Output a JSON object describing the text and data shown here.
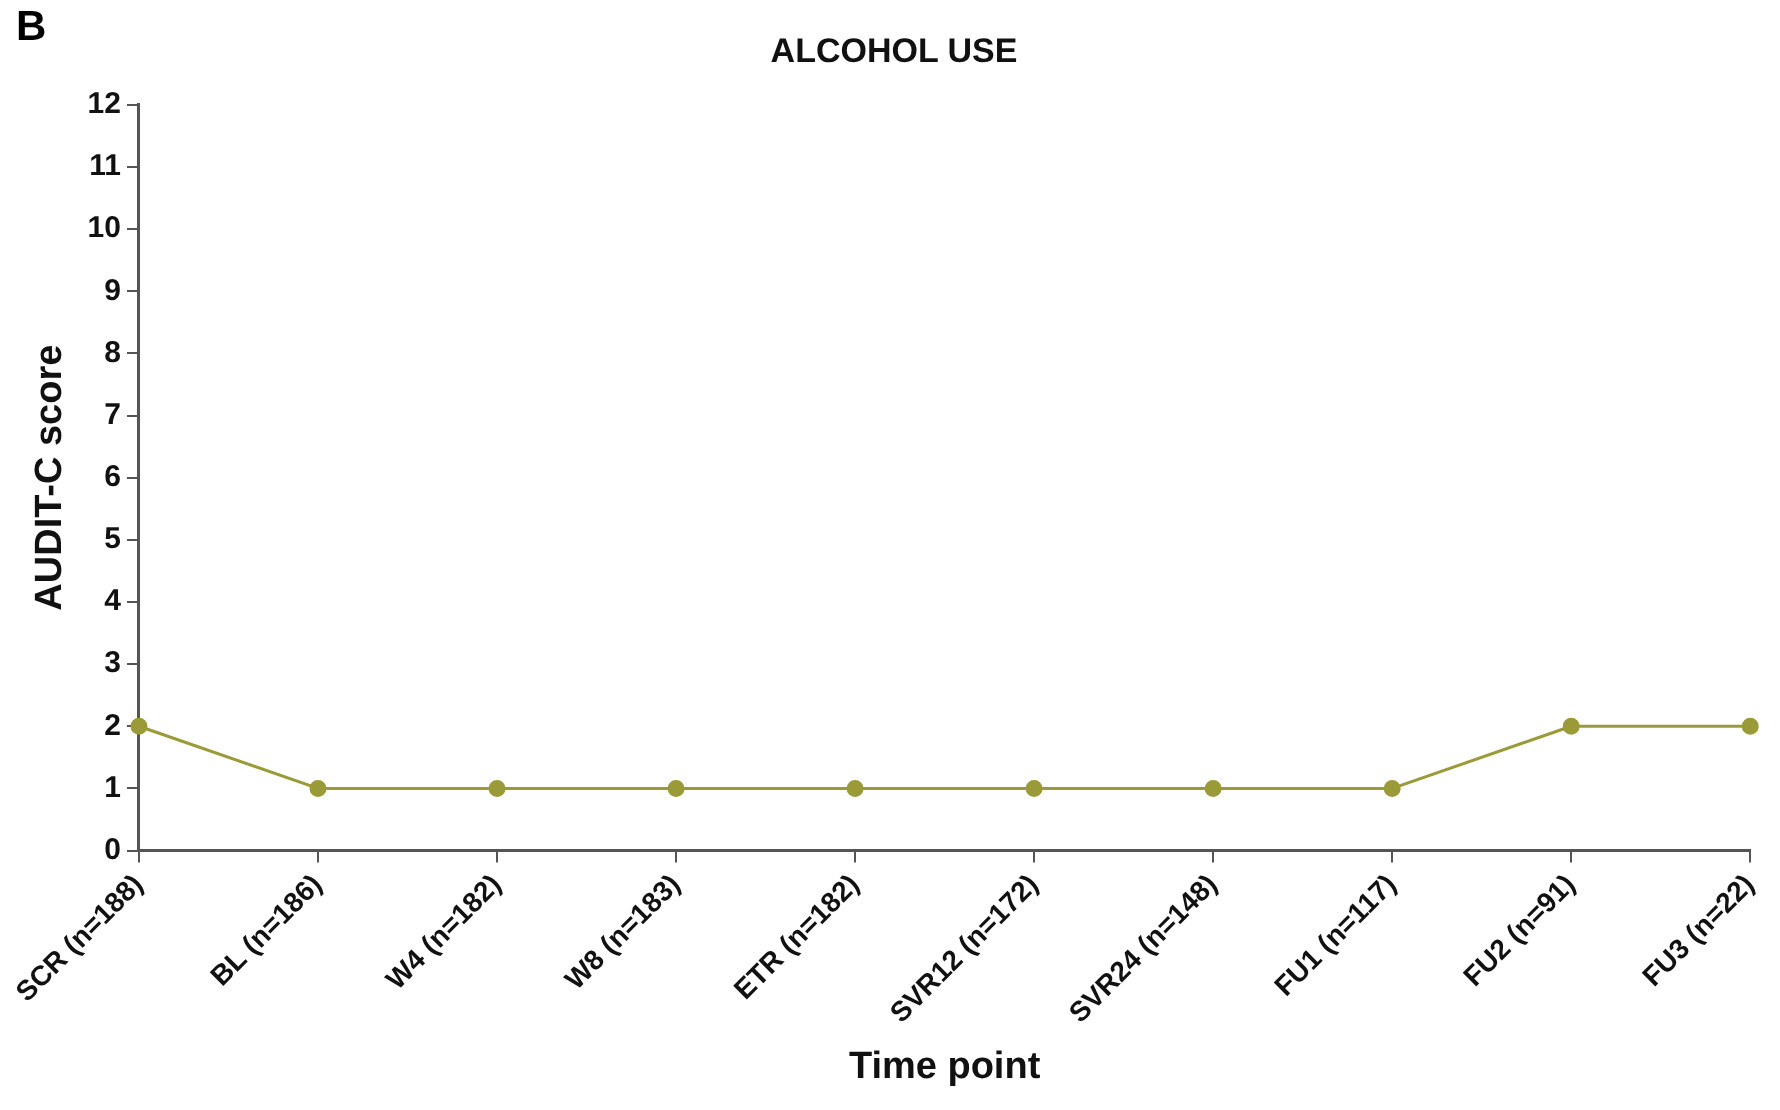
{
  "chart_data": {
    "type": "line",
    "title": "ALCOHOL USE",
    "xlabel": "Time point",
    "ylabel": "AUDIT-C score",
    "annotations": [
      "B"
    ],
    "categories": [
      "SCR (n=188)",
      "BL (n=186)",
      "W4 (n=182)",
      "W8 (n=183)",
      "ETR (n=182)",
      "SVR12 (n=172)",
      "SVR24 (n=148)",
      "FU1 (n=117)",
      "FU2 (n=91)",
      "FU3 (n=22)"
    ],
    "series": [
      {
        "color": "#9a9a38",
        "values": [
          2,
          1,
          1,
          1,
          1,
          1,
          1,
          1,
          2,
          2
        ]
      }
    ],
    "ylim": [
      0,
      12
    ],
    "yticks": [
      0,
      1,
      2,
      3,
      4,
      5,
      6,
      7,
      8,
      9,
      10,
      11,
      12
    ],
    "grid": false,
    "legend": false,
    "marker": "circle",
    "line_style": "solid"
  }
}
